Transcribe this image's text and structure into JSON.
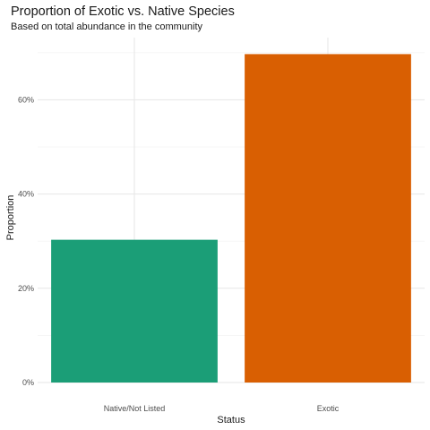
{
  "chart_data": {
    "type": "bar",
    "title": "Proportion of Exotic vs. Native Species",
    "subtitle": "Based on total abundance in the community",
    "xlabel": "Status",
    "ylabel": "Proportion",
    "categories": [
      "Native/Not Listed",
      "Exotic"
    ],
    "values": [
      0.303,
      0.697
    ],
    "colors": [
      "#1b9e77",
      "#d95f02"
    ],
    "ylim": [
      0,
      0.732
    ],
    "y_ticks": [
      0,
      0.2,
      0.4,
      0.6
    ],
    "y_tick_labels": [
      "0%",
      "20%",
      "40%",
      "60%"
    ],
    "grid": true,
    "legend": "none"
  }
}
